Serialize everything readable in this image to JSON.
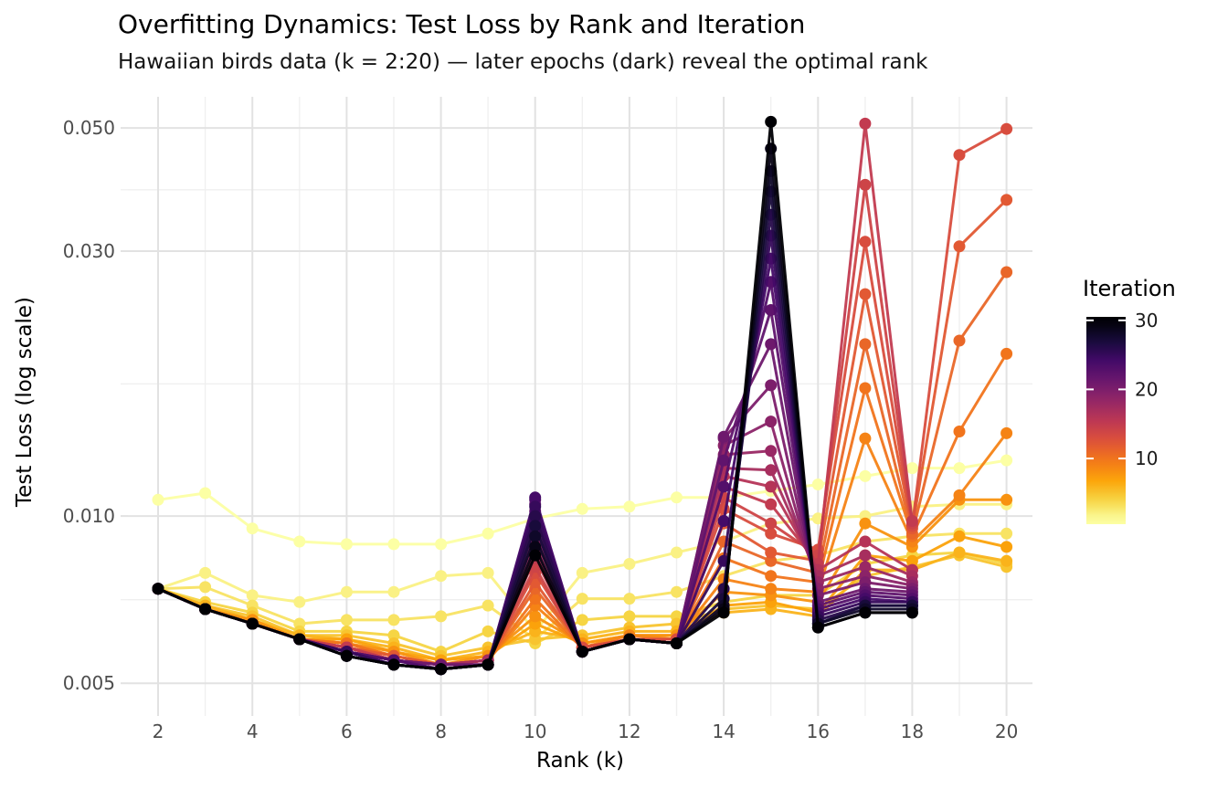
{
  "figure": {
    "title": "Overfitting Dynamics: Test Loss by Rank and Iteration",
    "subtitle": "Hawaiian birds data (k = 2:20) — later epochs (dark) reveal the optimal rank"
  },
  "style": {
    "background": "#ffffff",
    "grid_major": "#e2e2e2",
    "grid_minor": "#efefef",
    "tick_text": "#4d4d4d",
    "text": "#000000",
    "legend_tick": "#ffffff"
  },
  "chart_data": {
    "type": "line",
    "title": "Overfitting Dynamics: Test Loss by Rank and Iteration",
    "subtitle": "Hawaiian birds data (k = 2:20) — later epochs (dark) reveal the optimal rank",
    "xlabel": "Rank (k)",
    "ylabel": "Test Loss (log scale)",
    "y_scale": "log",
    "grid": true,
    "xlim": [
      1.36,
      20.55
    ],
    "ylim": [
      0.0045,
      0.0569
    ],
    "x_ticks_major": [
      2,
      4,
      6,
      8,
      10,
      12,
      14,
      16,
      18,
      20
    ],
    "x_ticks_minor": [
      3,
      5,
      7,
      9,
      11,
      13,
      15,
      17,
      19
    ],
    "y_ticks_major": [
      0.005,
      0.01,
      0.03,
      0.05
    ],
    "y_tick_labels": [
      "0.005",
      "0.010",
      "0.030",
      "0.050"
    ],
    "y_ticks_minor": [
      0.00707,
      0.0173,
      0.0387
    ],
    "legend": {
      "title": "Iteration",
      "position": "right",
      "ticks": [
        30,
        20,
        10
      ],
      "domain": [
        0.5,
        30.5
      ]
    },
    "colormap": {
      "name": "inferno-reversed-by-iteration",
      "stops": [
        [
          0.0,
          "#000004"
        ],
        [
          0.1,
          "#160b39"
        ],
        [
          0.2,
          "#420a68"
        ],
        [
          0.3,
          "#6a176e"
        ],
        [
          0.4,
          "#932667"
        ],
        [
          0.5,
          "#bc3754"
        ],
        [
          0.6,
          "#dd513a"
        ],
        [
          0.7,
          "#f37819"
        ],
        [
          0.8,
          "#fca50a"
        ],
        [
          0.9,
          "#f6d746"
        ],
        [
          1.0,
          "#fcffa4"
        ]
      ]
    },
    "x": [
      2,
      3,
      4,
      5,
      6,
      7,
      8,
      9,
      10,
      11,
      12,
      13,
      14,
      15,
      16,
      17,
      18,
      19,
      20
    ],
    "series": [
      {
        "iteration": 1,
        "values": [
          0.0107,
          0.011,
          0.0095,
          0.009,
          0.0089,
          0.0089,
          0.0089,
          0.0093,
          0.0099,
          0.0103,
          0.0104,
          0.0108,
          0.0108,
          0.0111,
          0.0114,
          0.0118,
          0.0122,
          0.0122,
          0.0126
        ]
      },
      {
        "iteration": 2,
        "values": [
          0.0074,
          0.0079,
          0.0072,
          0.007,
          0.0073,
          0.0073,
          0.0078,
          0.0079,
          0.0062,
          0.0079,
          0.0082,
          0.0086,
          0.009,
          0.0097,
          0.0099,
          0.01,
          0.0104,
          0.0105,
          0.0105
        ]
      },
      {
        "iteration": 3,
        "values": [
          0.0074,
          0.00745,
          0.0069,
          0.0064,
          0.0065,
          0.0065,
          0.0066,
          0.0069,
          0.006,
          0.0071,
          0.0071,
          0.0073,
          0.0078,
          0.0083,
          0.0085,
          0.009,
          0.0092,
          0.0093,
          0.0093
        ]
      },
      {
        "iteration": 4,
        "values": [
          0.0074,
          0.007,
          0.0067,
          0.0062,
          0.0062,
          0.0061,
          0.0057,
          0.0062,
          0.0059,
          0.0065,
          0.0066,
          0.0066,
          0.007,
          0.0072,
          0.0072,
          0.0082,
          0.0085,
          0.0086,
          0.0082
        ]
      },
      {
        "iteration": 5,
        "values": [
          0.0074,
          0.0069,
          0.0066,
          0.0061,
          0.0061,
          0.0059,
          0.0056,
          0.0058,
          0.006,
          0.0061,
          0.0063,
          0.0064,
          0.0068,
          0.0069,
          0.0068,
          0.0078,
          0.0081,
          0.0085,
          0.0081
        ]
      },
      {
        "iteration": 6,
        "values": [
          0.0074,
          0.0069,
          0.0065,
          0.0061,
          0.006,
          0.0058,
          0.0055,
          0.0057,
          0.0062,
          0.006,
          0.0062,
          0.0062,
          0.0067,
          0.0068,
          0.0066,
          0.008,
          0.008,
          0.0086,
          0.0083
        ]
      },
      {
        "iteration": 7,
        "values": [
          0.0074,
          0.0068,
          0.0065,
          0.006,
          0.006,
          0.0057,
          0.0055,
          0.0056,
          0.0064,
          0.0059,
          0.0061,
          0.0061,
          0.0069,
          0.007,
          0.0067,
          0.0085,
          0.0083,
          0.0092,
          0.0088
        ]
      },
      {
        "iteration": 8,
        "values": [
          0.0074,
          0.0068,
          0.0065,
          0.006,
          0.0059,
          0.0057,
          0.0054,
          0.0056,
          0.0066,
          0.0059,
          0.0061,
          0.0061,
          0.0073,
          0.0072,
          0.007,
          0.0097,
          0.0088,
          0.0107,
          0.0107
        ]
      },
      {
        "iteration": 9,
        "values": [
          0.0074,
          0.0068,
          0.0064,
          0.006,
          0.0059,
          0.0056,
          0.0054,
          0.0055,
          0.0069,
          0.0058,
          0.0061,
          0.006,
          0.0077,
          0.0074,
          0.0073,
          0.0138,
          0.009,
          0.0109,
          0.0141
        ]
      },
      {
        "iteration": 10,
        "values": [
          0.0074,
          0.0068,
          0.0064,
          0.006,
          0.0059,
          0.0056,
          0.0054,
          0.0055,
          0.0071,
          0.0058,
          0.006,
          0.006,
          0.0084,
          0.0078,
          0.0076,
          0.017,
          0.0092,
          0.0142,
          0.0196
        ]
      },
      {
        "iteration": 11,
        "values": [
          0.0074,
          0.0068,
          0.0064,
          0.006,
          0.0058,
          0.0056,
          0.0054,
          0.0055,
          0.0074,
          0.0058,
          0.006,
          0.006,
          0.009,
          0.0083,
          0.0079,
          0.0204,
          0.0093,
          0.0207,
          0.0275
        ]
      },
      {
        "iteration": 12,
        "values": [
          0.0074,
          0.0068,
          0.0064,
          0.006,
          0.0058,
          0.0056,
          0.0054,
          0.0055,
          0.0076,
          0.0058,
          0.006,
          0.006,
          0.0097,
          0.0086,
          0.0083,
          0.0251,
          0.0095,
          0.0306,
          0.0371
        ]
      },
      {
        "iteration": 13,
        "values": [
          0.0074,
          0.0068,
          0.0064,
          0.006,
          0.0058,
          0.0055,
          0.0054,
          0.0055,
          0.0079,
          0.0058,
          0.006,
          0.006,
          0.0103,
          0.0093,
          0.0087,
          0.0312,
          0.0096,
          0.0447,
          0.0498
        ]
      },
      {
        "iteration": 14,
        "values": [
          0.0074,
          0.0068,
          0.0064,
          0.006,
          0.0058,
          0.0055,
          0.0054,
          0.0055,
          0.0081,
          0.0057,
          0.006,
          0.0059,
          0.0108,
          0.0097,
          0.0085,
          0.0395,
          0.0097,
          null,
          null
        ]
      },
      {
        "iteration": 15,
        "values": [
          0.0074,
          0.0068,
          0.0064,
          0.006,
          0.0058,
          0.0055,
          0.0054,
          0.0055,
          0.0084,
          0.0057,
          0.006,
          0.0059,
          0.0113,
          0.0105,
          0.0082,
          0.0509,
          0.0098,
          null,
          null
        ]
      },
      {
        "iteration": 16,
        "values": [
          0.0074,
          0.0068,
          0.0064,
          0.006,
          0.0057,
          0.0055,
          0.0054,
          0.0055,
          0.0087,
          0.0057,
          0.006,
          0.0059,
          0.0118,
          0.0113,
          0.008,
          0.009,
          0.008,
          null,
          null
        ]
      },
      {
        "iteration": 17,
        "values": [
          0.0074,
          0.0068,
          0.0064,
          0.006,
          0.0057,
          0.0055,
          0.0054,
          0.0055,
          0.009,
          0.0057,
          0.006,
          0.0059,
          0.0122,
          0.0121,
          0.0078,
          0.0085,
          0.0078,
          null,
          null
        ]
      },
      {
        "iteration": 18,
        "values": [
          0.0074,
          0.0068,
          0.0064,
          0.006,
          0.0057,
          0.0055,
          0.0054,
          0.0054,
          0.0093,
          0.0057,
          0.006,
          0.0059,
          0.0129,
          0.0131,
          0.0076,
          0.0081,
          0.0076,
          null,
          null
        ]
      },
      {
        "iteration": 19,
        "values": [
          0.0074,
          0.0068,
          0.0064,
          0.006,
          0.0057,
          0.0055,
          0.0054,
          0.0054,
          0.0096,
          0.0057,
          0.006,
          0.0059,
          0.0134,
          0.0148,
          0.0074,
          0.0078,
          0.0075,
          null,
          null
        ]
      },
      {
        "iteration": 20,
        "values": [
          0.0074,
          0.0068,
          0.0064,
          0.006,
          0.0057,
          0.0055,
          0.0054,
          0.0054,
          0.0099,
          0.0057,
          0.006,
          0.0059,
          0.0138,
          0.0172,
          0.0072,
          0.0076,
          0.0074,
          null,
          null
        ]
      },
      {
        "iteration": 21,
        "values": [
          0.0074,
          0.0068,
          0.0064,
          0.006,
          0.0057,
          0.0055,
          0.0054,
          0.0054,
          0.0102,
          0.0057,
          0.006,
          0.0059,
          0.0139,
          0.0204,
          0.007,
          0.0074,
          0.0073,
          null,
          null
        ]
      },
      {
        "iteration": 22,
        "values": [
          0.0074,
          0.0068,
          0.0064,
          0.006,
          0.0057,
          0.0055,
          0.0053,
          0.0054,
          0.0105,
          0.0057,
          0.006,
          0.0059,
          0.0126,
          0.0235,
          0.0069,
          0.0073,
          0.0072,
          null,
          null
        ]
      },
      {
        "iteration": 23,
        "values": [
          0.0074,
          0.0068,
          0.0064,
          0.006,
          0.0057,
          0.0055,
          0.0053,
          0.0054,
          0.0107,
          0.0057,
          0.006,
          0.0059,
          0.0113,
          0.0264,
          0.0068,
          0.0072,
          0.0071,
          null,
          null
        ]
      },
      {
        "iteration": 24,
        "values": [
          0.0074,
          0.0068,
          0.0064,
          0.006,
          0.0057,
          0.0054,
          0.0053,
          0.0054,
          0.0108,
          0.0057,
          0.006,
          0.0059,
          0.0098,
          0.0291,
          0.0067,
          0.0071,
          0.007,
          null,
          null
        ]
      },
      {
        "iteration": 25,
        "values": [
          0.0074,
          0.0068,
          0.0064,
          0.006,
          0.0057,
          0.0054,
          0.0053,
          0.0054,
          0.0104,
          0.0057,
          0.006,
          0.0059,
          0.0083,
          0.032,
          0.0066,
          0.007,
          0.007,
          null,
          null
        ]
      },
      {
        "iteration": 26,
        "values": [
          0.0074,
          0.0068,
          0.0064,
          0.006,
          0.0056,
          0.0054,
          0.0053,
          0.0054,
          0.01,
          0.0057,
          0.006,
          0.0059,
          0.0074,
          0.0349,
          0.0065,
          0.0069,
          0.0069,
          null,
          null
        ]
      },
      {
        "iteration": 27,
        "values": [
          0.0074,
          0.0068,
          0.0064,
          0.006,
          0.0056,
          0.0054,
          0.0053,
          0.0054,
          0.0096,
          0.0057,
          0.006,
          0.0059,
          0.0071,
          0.0384,
          0.0064,
          0.0069,
          0.0069,
          null,
          null
        ]
      },
      {
        "iteration": 28,
        "values": [
          0.0074,
          0.0068,
          0.0064,
          0.006,
          0.0056,
          0.0054,
          0.0053,
          0.0054,
          0.0092,
          0.0057,
          0.006,
          0.0059,
          0.0069,
          0.0418,
          0.0064,
          0.0068,
          0.0068,
          null,
          null
        ]
      },
      {
        "iteration": 29,
        "values": [
          0.0074,
          0.0068,
          0.0064,
          0.006,
          0.0056,
          0.0054,
          0.0053,
          0.0054,
          0.0088,
          0.0057,
          0.006,
          0.0059,
          0.0068,
          0.0459,
          0.0063,
          0.0067,
          0.0067,
          null,
          null
        ]
      },
      {
        "iteration": 30,
        "values": [
          0.0074,
          0.0068,
          0.0064,
          0.006,
          0.0056,
          0.0054,
          0.0053,
          0.0054,
          0.0085,
          0.0057,
          0.006,
          0.0059,
          0.0067,
          0.0513,
          0.0063,
          0.0067,
          0.0067,
          null,
          null
        ]
      }
    ]
  }
}
